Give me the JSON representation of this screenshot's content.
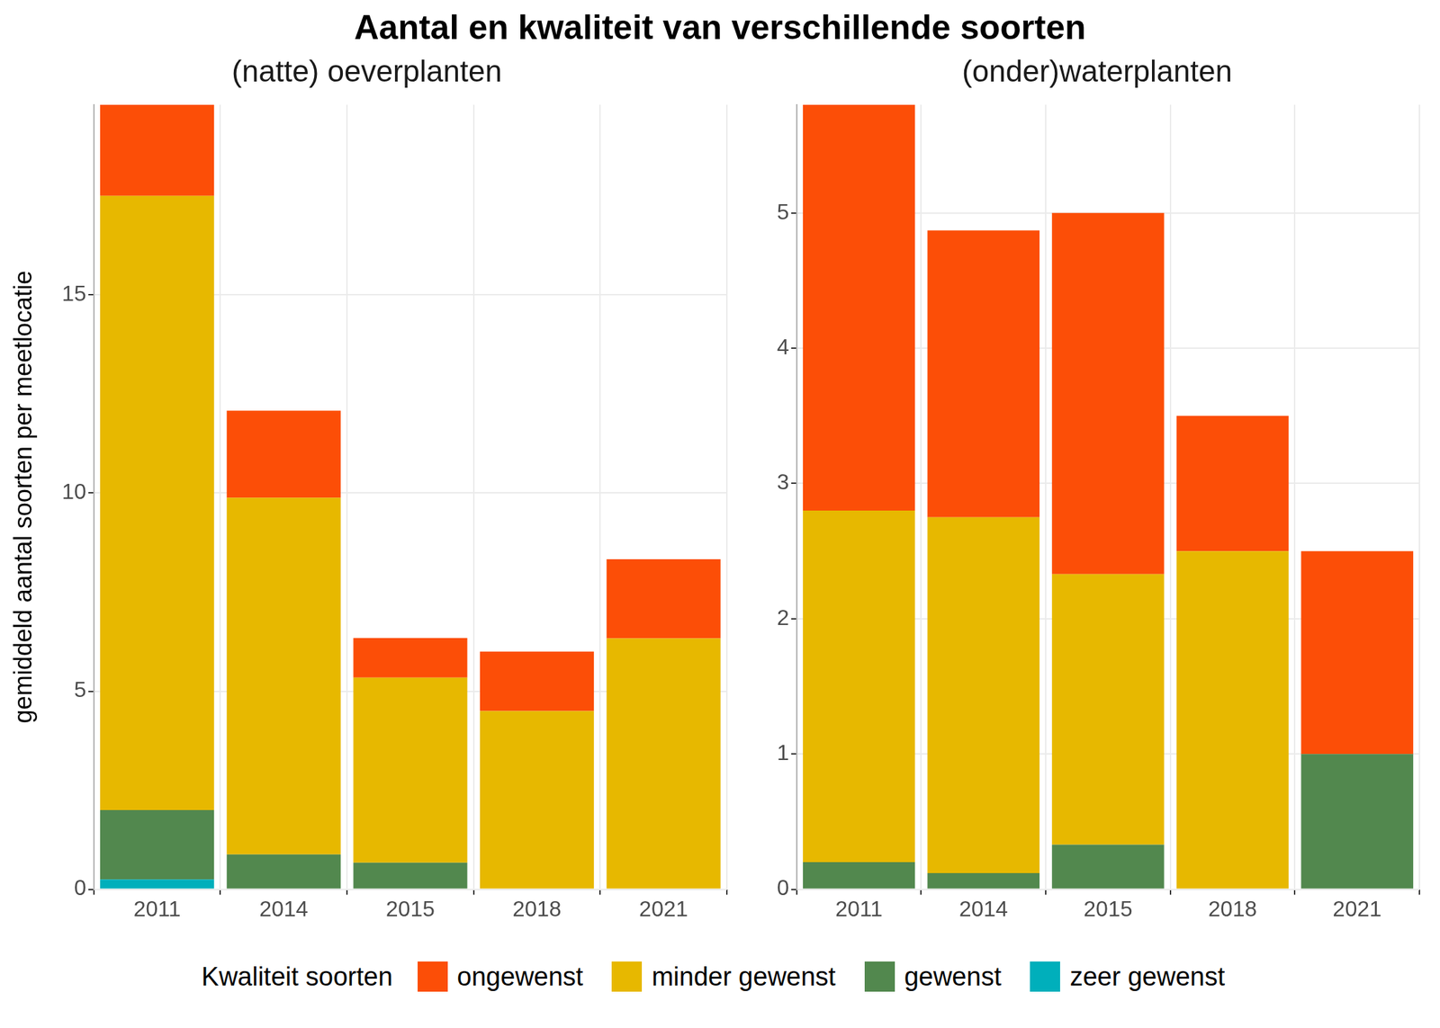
{
  "title": "Aantal en kwaliteit van verschillende soorten",
  "legend_title": "Kwaliteit soorten",
  "chart_data": [
    {
      "type": "bar",
      "title": "(natte) oeverplanten",
      "ylabel": "gemiddeld aantal soorten per meetlocatie",
      "stacked": true,
      "grid": true,
      "legend": "bottom",
      "categories": [
        "2011",
        "2014",
        "2015",
        "2018",
        "2021"
      ],
      "ylim": [
        0,
        19.8
      ],
      "yticks": [
        0,
        5,
        10,
        15
      ],
      "series": [
        {
          "name": "ongewenst",
          "color": "#fc4e07",
          "values": [
            2.3,
            2.2,
            1.0,
            1.5,
            2.0
          ]
        },
        {
          "name": "minder gewenst",
          "color": "#e7b800",
          "values": [
            15.5,
            9.0,
            4.67,
            4.5,
            6.33
          ]
        },
        {
          "name": "gewenst",
          "color": "#52884e",
          "values": [
            1.75,
            0.88,
            0.67,
            0,
            0
          ]
        },
        {
          "name": "zeer gewenst",
          "color": "#00afbb",
          "values": [
            0.25,
            0,
            0,
            0,
            0
          ]
        }
      ]
    },
    {
      "type": "bar",
      "title": "(onder)waterplanten",
      "stacked": true,
      "grid": true,
      "legend": "bottom",
      "categories": [
        "2011",
        "2014",
        "2015",
        "2018",
        "2021"
      ],
      "ylim": [
        0,
        5.8
      ],
      "yticks": [
        0,
        1,
        2,
        3,
        4,
        5
      ],
      "series": [
        {
          "name": "ongewenst",
          "color": "#fc4e07",
          "values": [
            3.0,
            2.12,
            2.67,
            1.0,
            1.5
          ]
        },
        {
          "name": "minder gewenst",
          "color": "#e7b800",
          "values": [
            2.6,
            2.63,
            2.0,
            2.5,
            0
          ]
        },
        {
          "name": "gewenst",
          "color": "#52884e",
          "values": [
            0.2,
            0.12,
            0.33,
            0,
            1.0
          ]
        },
        {
          "name": "zeer gewenst",
          "color": "#00afbb",
          "values": [
            0,
            0,
            0,
            0,
            0
          ]
        }
      ]
    }
  ]
}
